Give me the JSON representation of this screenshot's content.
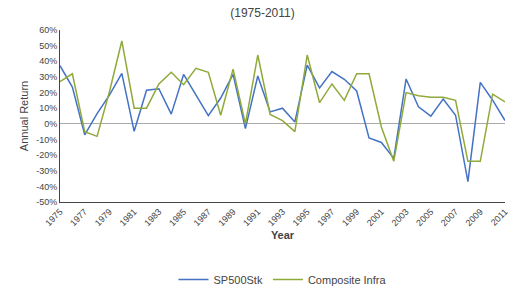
{
  "chart_data": {
    "type": "line",
    "title": "(1975-2011)",
    "xlabel": "Year",
    "ylabel": "Annual Return",
    "x": [
      1975,
      1976,
      1977,
      1978,
      1979,
      1980,
      1981,
      1982,
      1983,
      1984,
      1985,
      1986,
      1987,
      1988,
      1989,
      1990,
      1991,
      1992,
      1993,
      1994,
      1995,
      1996,
      1997,
      1998,
      1999,
      2000,
      2001,
      2002,
      2003,
      2004,
      2005,
      2006,
      2007,
      2008,
      2009,
      2010,
      2011
    ],
    "series": [
      {
        "name": "SP500Stk",
        "color": "#4472c4",
        "values": [
          0.372,
          0.235,
          -0.07,
          0.065,
          0.184,
          0.323,
          -0.048,
          0.215,
          0.224,
          0.062,
          0.316,
          0.187,
          0.052,
          0.165,
          0.316,
          -0.031,
          0.306,
          0.076,
          0.1,
          0.012,
          0.375,
          0.23,
          0.334,
          0.285,
          0.21,
          -0.091,
          -0.119,
          -0.221,
          0.287,
          0.109,
          0.049,
          0.158,
          0.055,
          -0.37,
          0.265,
          0.151,
          0.021
        ]
      },
      {
        "name": "Composite Infra",
        "color": "#8faa3a",
        "values": [
          0.27,
          0.32,
          -0.05,
          -0.08,
          0.205,
          0.53,
          0.1,
          0.1,
          0.255,
          0.33,
          0.25,
          0.355,
          0.33,
          0.055,
          0.35,
          0.0,
          0.44,
          0.06,
          0.02,
          -0.05,
          0.44,
          0.135,
          0.255,
          0.15,
          0.32,
          0.32,
          -0.02,
          -0.24,
          0.2,
          0.18,
          0.17,
          0.17,
          0.15,
          -0.24,
          -0.24,
          0.19,
          0.14
        ]
      }
    ],
    "xlim": [
      1975,
      2011
    ],
    "xticks": [
      1975,
      1977,
      1979,
      1981,
      1983,
      1985,
      1987,
      1989,
      1991,
      1993,
      1995,
      1997,
      1999,
      2001,
      2003,
      2005,
      2007,
      2009,
      2011
    ],
    "ylim": [
      -0.5,
      0.6
    ],
    "yticks": [
      {
        "value": -0.5,
        "label": "-50%"
      },
      {
        "value": -0.4,
        "label": "-40%"
      },
      {
        "value": -0.3,
        "label": "-30%"
      },
      {
        "value": -0.2,
        "label": "-20%"
      },
      {
        "value": -0.1,
        "label": "-10%"
      },
      {
        "value": 0.0,
        "label": "0%"
      },
      {
        "value": 0.1,
        "label": "10%"
      },
      {
        "value": 0.2,
        "label": "20%"
      },
      {
        "value": 0.3,
        "label": "30%"
      },
      {
        "value": 0.4,
        "label": "40%"
      },
      {
        "value": 0.5,
        "label": "50%"
      },
      {
        "value": 0.6,
        "label": "60%"
      }
    ],
    "grid": false,
    "legend": "bottom"
  }
}
